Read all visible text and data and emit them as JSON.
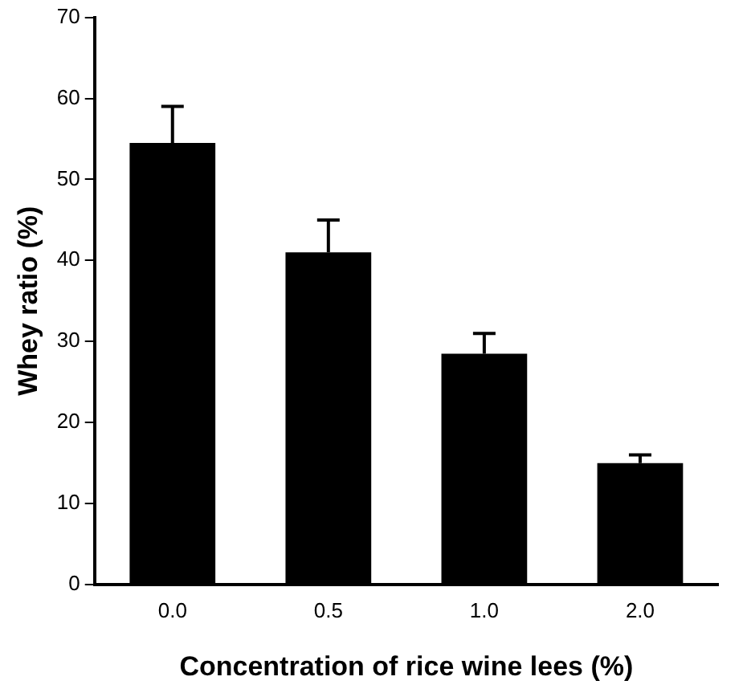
{
  "chart_data": {
    "type": "bar",
    "xlabel": "Concentration of rice wine lees (%)",
    "ylabel": "Whey ratio (%)",
    "categories": [
      "0.0",
      "0.5",
      "1.0",
      "2.0"
    ],
    "series": [
      {
        "color": "#000000",
        "values": [
          54.5,
          41,
          28.5,
          15
        ],
        "errors": [
          [
            54.5,
            59
          ],
          [
            41,
            45
          ],
          [
            28.5,
            31
          ],
          [
            15,
            16
          ]
        ]
      }
    ],
    "ylim": [
      0,
      70
    ],
    "yticks": [
      0,
      10,
      20,
      30,
      40,
      50,
      60,
      70
    ],
    "grid": false,
    "legend": false
  }
}
